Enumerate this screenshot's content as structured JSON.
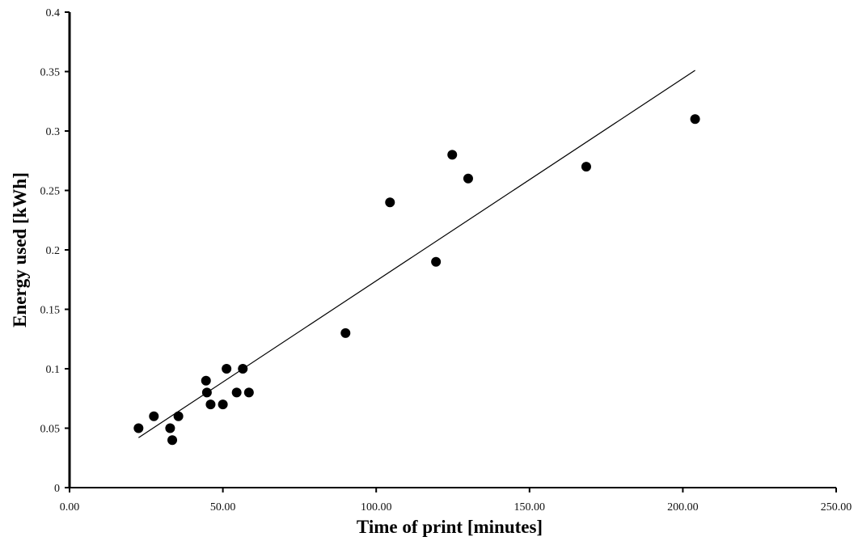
{
  "chart_data": {
    "type": "scatter",
    "title": "",
    "xlabel": "Time of print [minutes]",
    "ylabel": "Energy used [kWh]",
    "xlim": [
      0,
      250
    ],
    "ylim": [
      0,
      0.4
    ],
    "x_ticks": [
      0,
      50,
      100,
      150,
      200,
      250
    ],
    "x_tick_labels": [
      "0.00",
      "50.00",
      "100.00",
      "150.00",
      "200.00",
      "250.00"
    ],
    "y_ticks": [
      0,
      0.05,
      0.1,
      0.15,
      0.2,
      0.25,
      0.3,
      0.35,
      0.4
    ],
    "y_tick_labels": [
      "0",
      "0.05",
      "0.1",
      "0.15",
      "0.2",
      "0.25",
      "0.3",
      "0.35",
      "0.4"
    ],
    "grid": false,
    "legend": "none",
    "series": [
      {
        "points": [
          {
            "x": 22.5,
            "y": 0.05
          },
          {
            "x": 27.5,
            "y": 0.06
          },
          {
            "x": 32.8,
            "y": 0.05
          },
          {
            "x": 33.5,
            "y": 0.04
          },
          {
            "x": 35.5,
            "y": 0.06
          },
          {
            "x": 44.5,
            "y": 0.09
          },
          {
            "x": 44.8,
            "y": 0.08
          },
          {
            "x": 46.0,
            "y": 0.07
          },
          {
            "x": 50.0,
            "y": 0.07
          },
          {
            "x": 51.2,
            "y": 0.1
          },
          {
            "x": 54.5,
            "y": 0.08
          },
          {
            "x": 56.5,
            "y": 0.1
          },
          {
            "x": 58.5,
            "y": 0.08
          },
          {
            "x": 90.0,
            "y": 0.13
          },
          {
            "x": 104.5,
            "y": 0.24
          },
          {
            "x": 119.5,
            "y": 0.19
          },
          {
            "x": 124.8,
            "y": 0.28
          },
          {
            "x": 130.0,
            "y": 0.26
          },
          {
            "x": 168.5,
            "y": 0.27
          },
          {
            "x": 204.0,
            "y": 0.31
          }
        ]
      }
    ],
    "trendline": {
      "type": "linear",
      "x": [
        22.5,
        204.0
      ],
      "y": [
        0.042,
        0.351
      ]
    },
    "colors": {
      "marker": "#000000",
      "axis": "#000000",
      "trendline": "#000000"
    }
  }
}
